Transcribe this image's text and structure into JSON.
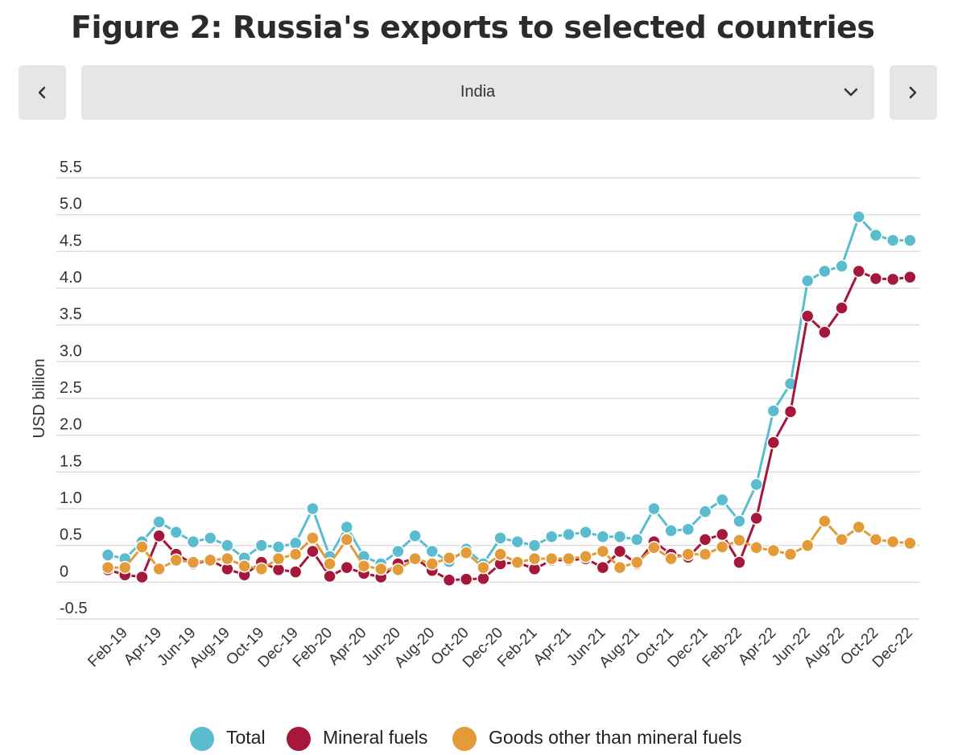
{
  "title": "Figure 2: Russia's exports to selected countries",
  "selector": {
    "value": "India"
  },
  "icons": {
    "prev": "chevron-left-icon",
    "next": "chevron-right-icon",
    "dropdown": "chevron-down-icon"
  },
  "chart_data": {
    "type": "line",
    "ylabel": "USD billion",
    "ylim": [
      -0.5,
      5.5
    ],
    "yticks": [
      -0.5,
      0,
      0.5,
      1.0,
      1.5,
      2.0,
      2.5,
      3.0,
      3.5,
      4.0,
      4.5,
      5.0,
      5.5
    ],
    "ytick_labels": [
      "-0.5",
      "0",
      "0.5",
      "1.0",
      "1.5",
      "2.0",
      "2.5",
      "3.0",
      "3.5",
      "4.0",
      "4.5",
      "5.0",
      "5.5"
    ],
    "grid": true,
    "x": [
      "Jan-19",
      "Feb-19",
      "Mar-19",
      "Apr-19",
      "May-19",
      "Jun-19",
      "Jul-19",
      "Aug-19",
      "Sep-19",
      "Oct-19",
      "Nov-19",
      "Dec-19",
      "Jan-20",
      "Feb-20",
      "Mar-20",
      "Apr-20",
      "May-20",
      "Jun-20",
      "Jul-20",
      "Aug-20",
      "Sep-20",
      "Oct-20",
      "Nov-20",
      "Dec-20",
      "Jan-21",
      "Feb-21",
      "Mar-21",
      "Apr-21",
      "May-21",
      "Jun-21",
      "Jul-21",
      "Aug-21",
      "Sep-21",
      "Oct-21",
      "Nov-21",
      "Dec-21",
      "Jan-22",
      "Feb-22",
      "Mar-22",
      "Apr-22",
      "May-22",
      "Jun-22",
      "Jul-22",
      "Aug-22",
      "Sep-22",
      "Oct-22",
      "Nov-22",
      "Dec-22"
    ],
    "x_tick_labels": [
      "Feb-19",
      "Apr-19",
      "Jun-19",
      "Aug-19",
      "Oct-19",
      "Dec-19",
      "Feb-20",
      "Apr-20",
      "Jun-20",
      "Aug-20",
      "Oct-20",
      "Dec-20",
      "Feb-21",
      "Apr-21",
      "Jun-21",
      "Aug-21",
      "Oct-21",
      "Dec-21",
      "Feb-22",
      "Apr-22",
      "Jun-22",
      "Aug-22",
      "Oct-22",
      "Dec-22"
    ],
    "series": [
      {
        "name": "Total",
        "color": "#5bbccf",
        "values": [
          0.37,
          0.32,
          0.55,
          0.82,
          0.68,
          0.55,
          0.6,
          0.5,
          0.33,
          0.5,
          0.48,
          0.53,
          1.0,
          0.35,
          0.75,
          0.35,
          0.25,
          0.42,
          0.63,
          0.42,
          0.28,
          0.45,
          0.25,
          0.6,
          0.55,
          0.5,
          0.62,
          0.65,
          0.68,
          0.62,
          0.62,
          0.58,
          1.0,
          0.7,
          0.72,
          0.96,
          1.12,
          0.83,
          1.33,
          2.33,
          2.7,
          4.1,
          4.23,
          4.3,
          4.97,
          4.72,
          4.65,
          4.65
        ]
      },
      {
        "name": "Mineral fuels",
        "color": "#a5173b",
        "values": [
          0.17,
          0.1,
          0.07,
          0.63,
          0.38,
          0.25,
          0.3,
          0.18,
          0.1,
          0.27,
          0.17,
          0.14,
          0.42,
          0.08,
          0.2,
          0.12,
          0.07,
          0.25,
          0.33,
          0.16,
          0.03,
          0.04,
          0.05,
          0.25,
          0.27,
          0.18,
          0.3,
          0.3,
          0.32,
          0.2,
          0.42,
          0.25,
          0.55,
          0.38,
          0.34,
          0.58,
          0.65,
          0.27,
          0.87,
          1.9,
          2.32,
          3.62,
          3.4,
          3.73,
          4.23,
          4.13,
          4.12,
          4.15
        ]
      },
      {
        "name": "Goods other than mineral fuels",
        "color": "#e39b3a",
        "values": [
          0.2,
          0.2,
          0.48,
          0.18,
          0.3,
          0.27,
          0.3,
          0.32,
          0.22,
          0.18,
          0.32,
          0.38,
          0.6,
          0.25,
          0.58,
          0.22,
          0.18,
          0.17,
          0.32,
          0.25,
          0.33,
          0.4,
          0.2,
          0.38,
          0.27,
          0.32,
          0.32,
          0.32,
          0.35,
          0.42,
          0.2,
          0.27,
          0.47,
          0.32,
          0.38,
          0.38,
          0.48,
          0.57,
          0.47,
          0.43,
          0.38,
          0.5,
          0.83,
          0.58,
          0.75,
          0.58,
          0.55,
          0.53
        ]
      }
    ],
    "legend_position": "bottom"
  }
}
